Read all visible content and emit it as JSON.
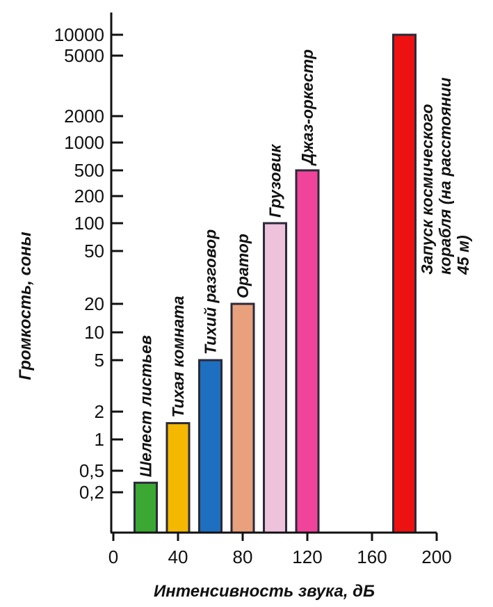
{
  "chart_data": {
    "type": "bar",
    "title": "",
    "xlabel": "Интенсивность звука, дБ",
    "ylabel": "Громкость, соны",
    "x_ticks": [
      "0",
      "40",
      "80",
      "120",
      "160",
      "200"
    ],
    "y_ticks": [
      "10000",
      "5000",
      "2000",
      "1000",
      "500",
      "200",
      "100",
      "50",
      "20",
      "10",
      "5",
      "2",
      "1",
      "0,5",
      "0,2"
    ],
    "xlim": [
      0,
      200
    ],
    "grid": false,
    "bars": [
      {
        "label": "Шелест листьев",
        "x": 20,
        "value": 0.3,
        "color": "#3aa832"
      },
      {
        "label": "Тихая комната",
        "x": 40,
        "value": 1.5,
        "color": "#f5b800"
      },
      {
        "label": "Тихий разговор",
        "x": 60,
        "value": 5,
        "color": "#1f6fc0"
      },
      {
        "label": "Оратор",
        "x": 80,
        "value": 20,
        "color": "#e9a07c"
      },
      {
        "label": "Грузовик",
        "x": 100,
        "value": 100,
        "color": "#efc2dc"
      },
      {
        "label": "Джаз-оркестр",
        "x": 120,
        "value": 500,
        "color": "#f0449a"
      },
      {
        "label": "Запуск космического корабля (на расстоянии 45 м)",
        "label_lines": [
          "Запуск космического",
          "корабля (на расстоянии",
          "45 м)"
        ],
        "x": 180,
        "value": 10000,
        "color": "#ee1111"
      }
    ]
  }
}
